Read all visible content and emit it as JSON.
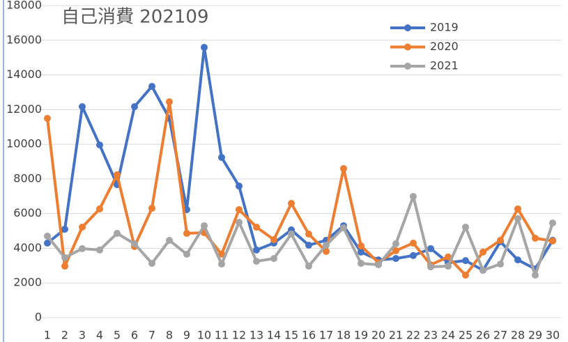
{
  "chart_data": {
    "type": "line",
    "title": "自己消費 202109",
    "categories": [
      1,
      2,
      3,
      4,
      5,
      6,
      7,
      8,
      9,
      10,
      11,
      12,
      13,
      14,
      15,
      16,
      17,
      18,
      19,
      20,
      21,
      22,
      23,
      24,
      25,
      26,
      27,
      28,
      29,
      30
    ],
    "series": [
      {
        "name": "2019",
        "color": "#4472c4",
        "values": [
          4300,
          5100,
          12170,
          9960,
          7670,
          12170,
          13340,
          11490,
          6230,
          15590,
          9240,
          7590,
          3900,
          4300,
          5060,
          4180,
          4460,
          5300,
          3780,
          3330,
          3410,
          3580,
          3980,
          3170,
          3290,
          2730,
          4380,
          3330,
          2810,
          4460
        ]
      },
      {
        "name": "2020",
        "color": "#ed7d31",
        "values": [
          11490,
          2970,
          5220,
          6270,
          8240,
          4100,
          6310,
          12450,
          4860,
          4900,
          3660,
          6230,
          5220,
          4500,
          6590,
          4820,
          3820,
          8600,
          4140,
          3170,
          3860,
          4300,
          3050,
          3500,
          2450,
          3780,
          4460,
          6270,
          4580,
          4420
        ]
      },
      {
        "name": "2021",
        "color": "#a5a5a5",
        "values": [
          4700,
          3460,
          3980,
          3900,
          4860,
          4260,
          3130,
          4460,
          3660,
          5300,
          3090,
          5500,
          3250,
          3410,
          4820,
          2970,
          4180,
          5180,
          3130,
          3050,
          4260,
          6990,
          2930,
          2970,
          5220,
          2730,
          3090,
          5710,
          2450,
          5460
        ]
      }
    ],
    "ylim": [
      0,
      18000
    ],
    "yticks": [
      0,
      2000,
      4000,
      6000,
      8000,
      10000,
      12000,
      14000,
      16000,
      18000
    ],
    "grid": true,
    "legend": "top-right"
  }
}
